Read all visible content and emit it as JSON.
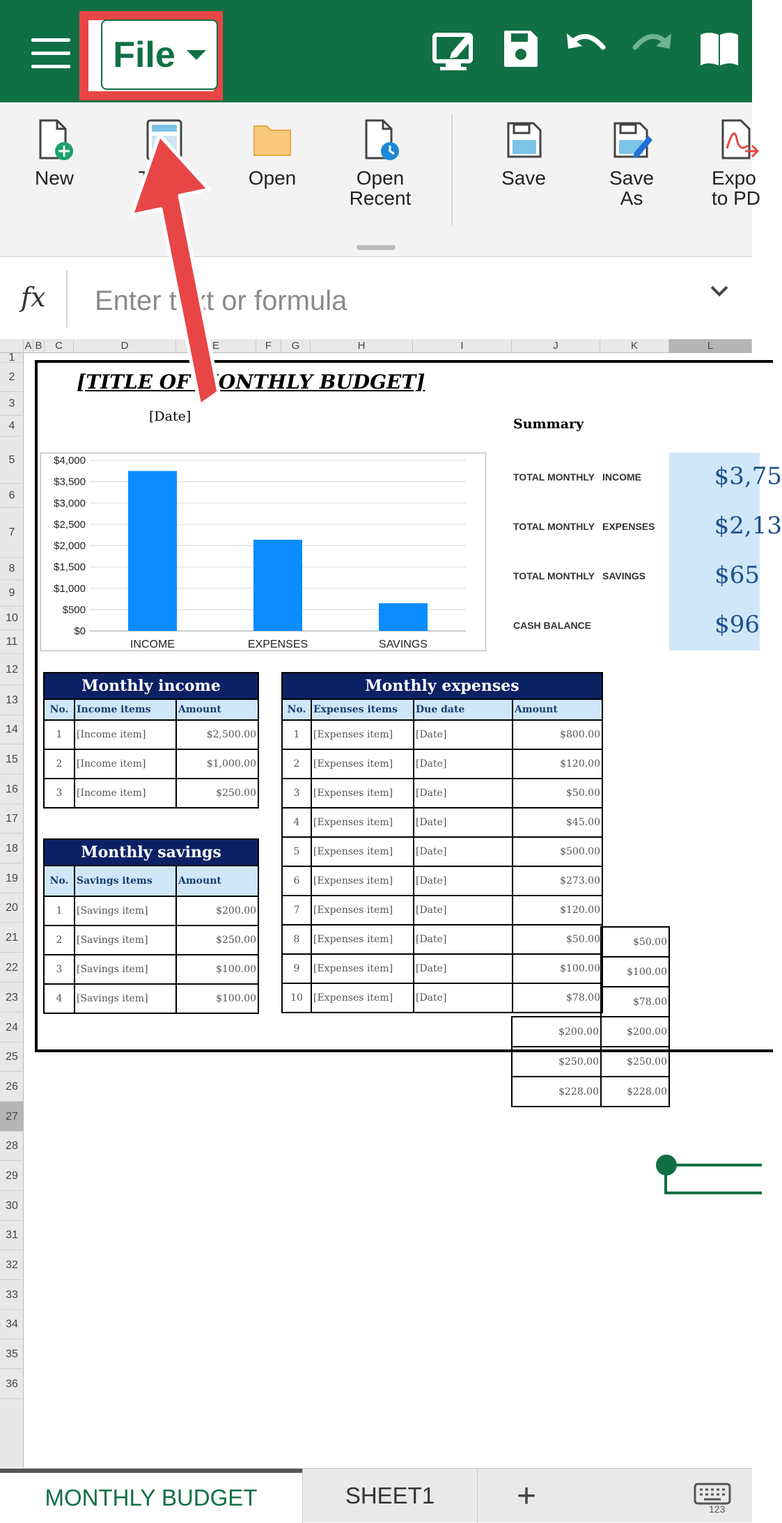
{
  "toolbar": {
    "file_label": "File",
    "icons": [
      "menu-icon",
      "file-dropdown-caret-icon",
      "edit-mode-icon",
      "save-icon",
      "undo-icon",
      "redo-icon",
      "read-mode-icon"
    ]
  },
  "ribbon": {
    "items": [
      {
        "label": "New",
        "icon": "new-file-icon"
      },
      {
        "label": "Te    s",
        "icon": "template-icon"
      },
      {
        "label": "Open",
        "icon": "folder-icon"
      },
      {
        "label": "Open\nRecent",
        "icon": "recent-file-icon"
      },
      {
        "label": "Save",
        "icon": "save-icon"
      },
      {
        "label": "Save\nAs",
        "icon": "save-as-icon"
      },
      {
        "label": "Expo\nto PD",
        "icon": "export-pdf-icon"
      }
    ]
  },
  "formula_bar": {
    "fx": "fx",
    "placeholder": "Enter text or formula"
  },
  "grid": {
    "columns": [
      "A",
      "B",
      "C",
      "D",
      "E",
      "F",
      "G",
      "H",
      "I",
      "J",
      "K",
      "L"
    ],
    "rows": [
      "1",
      "2",
      "3",
      "4",
      "5",
      "6",
      "7",
      "8",
      "9",
      "10",
      "11",
      "12",
      "13",
      "14",
      "15",
      "16",
      "17",
      "18",
      "19",
      "20",
      "21",
      "22",
      "23",
      "24",
      "25",
      "26",
      "27",
      "28",
      "29",
      "30",
      "31",
      "32",
      "33",
      "34",
      "35",
      "36"
    ],
    "selected_row": "27",
    "selected_col": "L"
  },
  "budget": {
    "title": "[TITLE OF MONTHLY BUDGET]",
    "date": "[Date]",
    "summary": {
      "heading": "Summary",
      "rows": [
        {
          "a": "TOTAL MONTHLY",
          "b": "INCOME",
          "value": "$3,75"
        },
        {
          "a": "TOTAL MONTHLY",
          "b": "EXPENSES",
          "value": "$2,13"
        },
        {
          "a": "TOTAL MONTHLY",
          "b": "SAVINGS",
          "value": "$65"
        },
        {
          "a": "CASH BALANCE",
          "b": "",
          "value": "$96"
        }
      ]
    },
    "income": {
      "title": "Monthly income",
      "headers": [
        "No.",
        "Income items",
        "Amount"
      ],
      "rows": [
        [
          "1",
          "[Income item]",
          "$2,500.00"
        ],
        [
          "2",
          "[Income item]",
          "$1,000.00"
        ],
        [
          "3",
          "[Income item]",
          "$250.00"
        ]
      ]
    },
    "savings": {
      "title": "Monthly savings",
      "headers": [
        "No.",
        "Savings items",
        "Amount"
      ],
      "rows": [
        [
          "1",
          "[Savings item]",
          "$200.00"
        ],
        [
          "2",
          "[Savings item]",
          "$250.00"
        ],
        [
          "3",
          "[Savings item]",
          "$100.00"
        ],
        [
          "4",
          "[Savings item]",
          "$100.00"
        ]
      ]
    },
    "expenses": {
      "title": "Monthly expenses",
      "headers": [
        "No.",
        "Expenses items",
        "Due date",
        "Amount"
      ],
      "rows": [
        [
          "1",
          "[Expenses item]",
          "[Date]",
          "$800.00"
        ],
        [
          "2",
          "[Expenses item]",
          "[Date]",
          "$120.00"
        ],
        [
          "3",
          "[Expenses item]",
          "[Date]",
          "$50.00"
        ],
        [
          "4",
          "[Expenses item]",
          "[Date]",
          "$45.00"
        ],
        [
          "5",
          "[Expenses item]",
          "[Date]",
          "$500.00"
        ],
        [
          "6",
          "[Expenses item]",
          "[Date]",
          "$273.00"
        ],
        [
          "7",
          "[Expenses item]",
          "[Date]",
          "$120.00"
        ],
        [
          "8",
          "[Expenses item]",
          "[Date]",
          "$50.00"
        ],
        [
          "9",
          "[Expenses item]",
          "[Date]",
          "$100.00"
        ],
        [
          "10",
          "[Expenses item]",
          "[Date]",
          "$78.00"
        ]
      ]
    },
    "extra": {
      "col_k": [
        "$50.00",
        "$100.00",
        "$78.00",
        "$200.00",
        "$250.00",
        "$228.00"
      ],
      "col_j": [
        "$200.00",
        "$250.00",
        "$228.00"
      ]
    }
  },
  "chart_data": {
    "type": "bar",
    "categories": [
      "INCOME",
      "EXPENSES",
      "SAVINGS"
    ],
    "values": [
      3750,
      2138,
      650
    ],
    "ylim": [
      0,
      4000
    ],
    "yticks": [
      "$0",
      "$500",
      "$1,000",
      "$1,500",
      "$2,000",
      "$2,500",
      "$3,000",
      "$3,500",
      "$4,000"
    ],
    "bar_color": "#0a8cff",
    "grid": true
  },
  "sheets": {
    "tabs": [
      "MONTHLY BUDGET",
      "SHEET1"
    ],
    "active": "MONTHLY BUDGET",
    "add_label": "+"
  },
  "colors": {
    "brand": "#107044",
    "highlight": "#e84646",
    "table_header": "#0c2164",
    "table_subheader": "#cfe7f9"
  }
}
